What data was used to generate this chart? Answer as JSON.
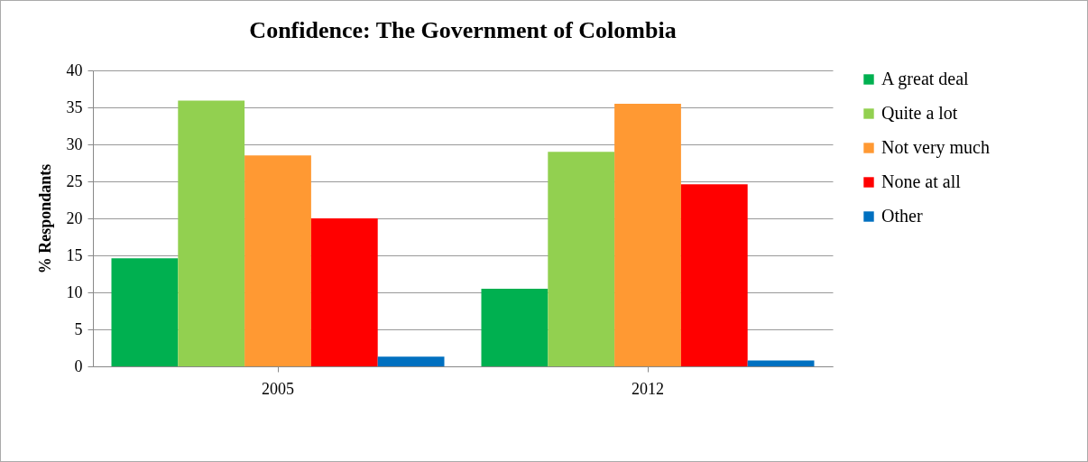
{
  "chart_data": {
    "type": "bar",
    "title": "Confidence: The Government of Colombia",
    "ylabel": "% Respondants",
    "categories": [
      "2005",
      "2012"
    ],
    "series": [
      {
        "name": "A great deal",
        "color": "#00b050",
        "values": [
          14.6,
          10.5
        ]
      },
      {
        "name": "Quite a lot",
        "color": "#92d050",
        "values": [
          35.9,
          29
        ]
      },
      {
        "name": "Not very much",
        "color": "#ff9933",
        "values": [
          28.5,
          35.5
        ]
      },
      {
        "name": "None at all",
        "color": "#ff0000",
        "values": [
          20,
          24.6
        ]
      },
      {
        "name": "Other",
        "color": "#0070c0",
        "values": [
          1.3,
          0.8
        ]
      }
    ],
    "ylim": [
      0,
      40
    ],
    "yticks": [
      0,
      5,
      10,
      15,
      20,
      25,
      30,
      35,
      40
    ],
    "grid": "y",
    "legend": "right"
  }
}
